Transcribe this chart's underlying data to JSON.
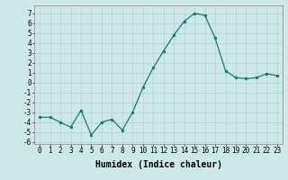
{
  "x": [
    0,
    1,
    2,
    3,
    4,
    5,
    6,
    7,
    8,
    9,
    10,
    11,
    12,
    13,
    14,
    15,
    16,
    17,
    18,
    19,
    20,
    21,
    22,
    23
  ],
  "y": [
    -3.5,
    -3.5,
    -4.0,
    -4.5,
    -2.8,
    -5.3,
    -4.0,
    -3.7,
    -4.8,
    -3.0,
    -0.5,
    1.5,
    3.2,
    4.8,
    6.2,
    7.0,
    6.8,
    4.5,
    1.2,
    0.5,
    0.4,
    0.5,
    0.9,
    0.7
  ],
  "line_color": "#1a7a6e",
  "marker": "o",
  "markersize": 2.0,
  "linewidth": 0.9,
  "background_color": "#cce8e8",
  "grid_color": "#aacccc",
  "xlabel": "Humidex (Indice chaleur)",
  "xlabel_fontsize": 7,
  "xlim": [
    -0.5,
    23.5
  ],
  "ylim": [
    -6.2,
    7.8
  ],
  "yticks": [
    -6,
    -5,
    -4,
    -3,
    -2,
    -1,
    0,
    1,
    2,
    3,
    4,
    5,
    6,
    7
  ],
  "xticks": [
    0,
    1,
    2,
    3,
    4,
    5,
    6,
    7,
    8,
    9,
    10,
    11,
    12,
    13,
    14,
    15,
    16,
    17,
    18,
    19,
    20,
    21,
    22,
    23
  ],
  "tick_fontsize": 5.5,
  "figsize": [
    3.2,
    2.0
  ],
  "dpi": 100
}
